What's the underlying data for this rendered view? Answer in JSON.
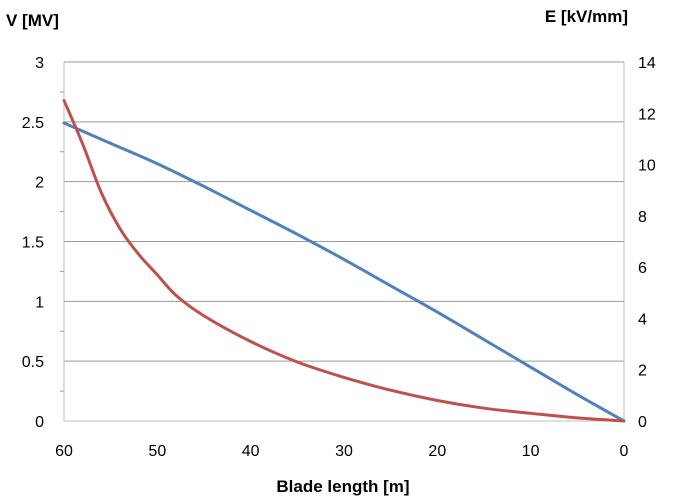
{
  "chart_data": {
    "type": "line",
    "xlabel": "Blade length [m]",
    "ylabel_left": "V [MV]",
    "ylabel_right": "E [kV/mm]",
    "x_reversed": true,
    "xlim": [
      0,
      60
    ],
    "ylim_left": [
      0,
      3
    ],
    "ylim_right": [
      0,
      14
    ],
    "x_ticks": [
      60,
      50,
      40,
      30,
      20,
      10,
      0
    ],
    "y_ticks_left": [
      0,
      0.5,
      1,
      1.5,
      2,
      2.5,
      3
    ],
    "y_ticks_right": [
      0,
      2,
      4,
      6,
      8,
      10,
      12,
      14
    ],
    "grid": "horizontal",
    "series": [
      {
        "axis": "left",
        "color": "#4f81bd",
        "x": [
          60,
          55,
          50,
          45,
          40,
          35,
          30,
          25,
          20,
          15,
          10,
          5,
          0
        ],
        "y": [
          2.49,
          2.32,
          2.15,
          1.96,
          1.76,
          1.56,
          1.35,
          1.13,
          0.91,
          0.68,
          0.45,
          0.22,
          0.0
        ]
      },
      {
        "axis": "right",
        "color": "#c0504d",
        "x": [
          60,
          58,
          56,
          54,
          52,
          50,
          48,
          45,
          40,
          35,
          30,
          25,
          20,
          15,
          10,
          5,
          0
        ],
        "y": [
          12.5,
          10.8,
          8.9,
          7.5,
          6.5,
          5.7,
          4.9,
          4.1,
          3.1,
          2.3,
          1.7,
          1.2,
          0.8,
          0.5,
          0.3,
          0.12,
          0.0
        ]
      }
    ]
  }
}
